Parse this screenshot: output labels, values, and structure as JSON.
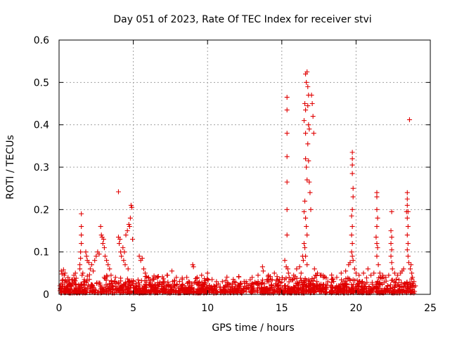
{
  "chart_data": {
    "type": "scatter",
    "title": "Day 051 of 2023, Rate Of TEC Index for receiver stvi",
    "xlabel": "GPS time / hours",
    "ylabel": "ROTI / TECUs",
    "xlim": [
      0,
      25
    ],
    "ylim": [
      0,
      0.6
    ],
    "xticks": [
      0,
      5,
      10,
      15,
      20,
      25
    ],
    "yticks": [
      0,
      0.1,
      0.2,
      0.3,
      0.4,
      0.5,
      0.6
    ],
    "xtick_labels": [
      "0",
      "5",
      "10",
      "15",
      "20",
      "25"
    ],
    "ytick_labels": [
      "0",
      "0.1",
      "0.2",
      "0.3",
      "0.4",
      "0.5",
      "0.6"
    ],
    "grid": true,
    "marker": "plus",
    "color": "#e00000",
    "series": [
      {
        "name": "ROTI",
        "points": [
          [
            0.1,
            0.012
          ],
          [
            0.15,
            0.055
          ],
          [
            0.2,
            0.048
          ],
          [
            0.25,
            0.035
          ],
          [
            0.3,
            0.058
          ],
          [
            0.35,
            0.045
          ],
          [
            0.4,
            0.05
          ],
          [
            0.5,
            0.03
          ],
          [
            0.6,
            0.04
          ],
          [
            0.7,
            0.025
          ],
          [
            0.8,
            0.02
          ],
          [
            0.9,
            0.035
          ],
          [
            1.0,
            0.045
          ],
          [
            1.1,
            0.05
          ],
          [
            1.15,
            0.038
          ],
          [
            1.5,
            0.19
          ],
          [
            1.5,
            0.16
          ],
          [
            1.5,
            0.14
          ],
          [
            1.5,
            0.12
          ],
          [
            1.45,
            0.1
          ],
          [
            1.45,
            0.085
          ],
          [
            1.4,
            0.07
          ],
          [
            1.4,
            0.06
          ],
          [
            1.55,
            0.045
          ],
          [
            1.6,
            0.05
          ],
          [
            1.7,
            0.035
          ],
          [
            1.8,
            0.1
          ],
          [
            1.85,
            0.09
          ],
          [
            1.9,
            0.08
          ],
          [
            2.0,
            0.075
          ],
          [
            2.1,
            0.06
          ],
          [
            2.2,
            0.07
          ],
          [
            2.3,
            0.055
          ],
          [
            2.4,
            0.08
          ],
          [
            2.5,
            0.09
          ],
          [
            2.6,
            0.1
          ],
          [
            2.7,
            0.095
          ],
          [
            2.8,
            0.16
          ],
          [
            2.85,
            0.14
          ],
          [
            2.9,
            0.135
          ],
          [
            2.95,
            0.12
          ],
          [
            3.0,
            0.13
          ],
          [
            3.05,
            0.11
          ],
          [
            3.1,
            0.09
          ],
          [
            3.2,
            0.08
          ],
          [
            3.3,
            0.07
          ],
          [
            3.4,
            0.06
          ],
          [
            3.5,
            0.045
          ],
          [
            3.8,
            0.04
          ],
          [
            4.0,
            0.242
          ],
          [
            4.0,
            0.135
          ],
          [
            4.05,
            0.12
          ],
          [
            4.1,
            0.13
          ],
          [
            4.15,
            0.1
          ],
          [
            4.2,
            0.09
          ],
          [
            4.3,
            0.11
          ],
          [
            4.35,
            0.08
          ],
          [
            4.4,
            0.1
          ],
          [
            4.45,
            0.07
          ],
          [
            4.5,
            0.14
          ],
          [
            4.6,
            0.15
          ],
          [
            4.65,
            0.06
          ],
          [
            4.7,
            0.165
          ],
          [
            4.75,
            0.16
          ],
          [
            4.8,
            0.18
          ],
          [
            4.85,
            0.21
          ],
          [
            4.9,
            0.205
          ],
          [
            4.95,
            0.13
          ],
          [
            5.4,
            0.09
          ],
          [
            5.5,
            0.08
          ],
          [
            5.6,
            0.085
          ],
          [
            5.7,
            0.06
          ],
          [
            5.8,
            0.05
          ],
          [
            6.0,
            0.04
          ],
          [
            6.3,
            0.035
          ],
          [
            6.6,
            0.04
          ],
          [
            7.0,
            0.03
          ],
          [
            7.3,
            0.045
          ],
          [
            7.6,
            0.055
          ],
          [
            7.9,
            0.04
          ],
          [
            8.3,
            0.035
          ],
          [
            8.6,
            0.04
          ],
          [
            9.0,
            0.07
          ],
          [
            9.05,
            0.065
          ],
          [
            9.3,
            0.04
          ],
          [
            9.6,
            0.045
          ],
          [
            10.0,
            0.05
          ],
          [
            10.3,
            0.035
          ],
          [
            10.6,
            0.03
          ],
          [
            11.0,
            0.03
          ],
          [
            11.4,
            0.025
          ],
          [
            11.8,
            0.03
          ],
          [
            12.2,
            0.025
          ],
          [
            12.6,
            0.03
          ],
          [
            13.0,
            0.04
          ],
          [
            13.4,
            0.045
          ],
          [
            13.7,
            0.065
          ],
          [
            13.75,
            0.055
          ],
          [
            14.1,
            0.045
          ],
          [
            14.5,
            0.05
          ],
          [
            14.8,
            0.03
          ],
          [
            15.2,
            0.08
          ],
          [
            15.3,
            0.065
          ],
          [
            15.35,
            0.465
          ],
          [
            15.35,
            0.435
          ],
          [
            15.35,
            0.38
          ],
          [
            15.35,
            0.325
          ],
          [
            15.35,
            0.265
          ],
          [
            15.35,
            0.2
          ],
          [
            15.35,
            0.14
          ],
          [
            15.4,
            0.06
          ],
          [
            15.45,
            0.05
          ],
          [
            15.5,
            0.04
          ],
          [
            15.6,
            0.035
          ],
          [
            15.8,
            0.045
          ],
          [
            16.0,
            0.06
          ],
          [
            16.2,
            0.065
          ],
          [
            16.3,
            0.05
          ],
          [
            16.4,
            0.09
          ],
          [
            16.45,
            0.08
          ],
          [
            16.5,
            0.41
          ],
          [
            16.55,
            0.45
          ],
          [
            16.6,
            0.38
          ],
          [
            16.6,
            0.32
          ],
          [
            16.65,
            0.3
          ],
          [
            16.7,
            0.27
          ],
          [
            16.55,
            0.22
          ],
          [
            16.5,
            0.195
          ],
          [
            16.6,
            0.18
          ],
          [
            16.65,
            0.16
          ],
          [
            16.7,
            0.14
          ],
          [
            16.5,
            0.12
          ],
          [
            16.55,
            0.11
          ],
          [
            16.6,
            0.09
          ],
          [
            16.7,
            0.07
          ],
          [
            16.6,
            0.52
          ],
          [
            16.65,
            0.5
          ],
          [
            16.7,
            0.525
          ],
          [
            16.75,
            0.49
          ],
          [
            16.8,
            0.47
          ],
          [
            16.6,
            0.435
          ],
          [
            16.75,
            0.445
          ],
          [
            16.8,
            0.4
          ],
          [
            16.85,
            0.39
          ],
          [
            16.75,
            0.355
          ],
          [
            16.8,
            0.315
          ],
          [
            16.85,
            0.265
          ],
          [
            16.9,
            0.24
          ],
          [
            16.95,
            0.2
          ],
          [
            17.0,
            0.47
          ],
          [
            17.05,
            0.45
          ],
          [
            17.1,
            0.42
          ],
          [
            17.15,
            0.38
          ],
          [
            17.2,
            0.06
          ],
          [
            17.4,
            0.05
          ],
          [
            17.6,
            0.045
          ],
          [
            17.8,
            0.04
          ],
          [
            18.1,
            0.03
          ],
          [
            18.4,
            0.035
          ],
          [
            18.7,
            0.04
          ],
          [
            19.0,
            0.05
          ],
          [
            19.3,
            0.055
          ],
          [
            19.5,
            0.07
          ],
          [
            19.6,
            0.075
          ],
          [
            19.75,
            0.335
          ],
          [
            19.75,
            0.32
          ],
          [
            19.75,
            0.305
          ],
          [
            19.75,
            0.285
          ],
          [
            19.8,
            0.25
          ],
          [
            19.8,
            0.23
          ],
          [
            19.75,
            0.2
          ],
          [
            19.7,
            0.185
          ],
          [
            19.75,
            0.16
          ],
          [
            19.7,
            0.14
          ],
          [
            19.75,
            0.12
          ],
          [
            19.7,
            0.1
          ],
          [
            19.75,
            0.09
          ],
          [
            19.8,
            0.08
          ],
          [
            19.9,
            0.06
          ],
          [
            20.0,
            0.05
          ],
          [
            20.2,
            0.045
          ],
          [
            20.5,
            0.05
          ],
          [
            20.8,
            0.06
          ],
          [
            21.0,
            0.045
          ],
          [
            21.2,
            0.05
          ],
          [
            21.4,
            0.24
          ],
          [
            21.4,
            0.23
          ],
          [
            21.4,
            0.2
          ],
          [
            21.45,
            0.18
          ],
          [
            21.4,
            0.16
          ],
          [
            21.35,
            0.135
          ],
          [
            21.4,
            0.12
          ],
          [
            21.45,
            0.11
          ],
          [
            21.4,
            0.09
          ],
          [
            21.5,
            0.07
          ],
          [
            21.6,
            0.05
          ],
          [
            21.8,
            0.045
          ],
          [
            22.0,
            0.04
          ],
          [
            22.2,
            0.045
          ],
          [
            22.4,
            0.195
          ],
          [
            22.35,
            0.15
          ],
          [
            22.4,
            0.135
          ],
          [
            22.35,
            0.12
          ],
          [
            22.4,
            0.105
          ],
          [
            22.35,
            0.09
          ],
          [
            22.4,
            0.075
          ],
          [
            22.45,
            0.06
          ],
          [
            22.6,
            0.05
          ],
          [
            22.8,
            0.045
          ],
          [
            23.0,
            0.05
          ],
          [
            23.1,
            0.055
          ],
          [
            23.2,
            0.06
          ],
          [
            23.45,
            0.24
          ],
          [
            23.45,
            0.225
          ],
          [
            23.45,
            0.21
          ],
          [
            23.4,
            0.195
          ],
          [
            23.5,
            0.195
          ],
          [
            23.45,
            0.18
          ],
          [
            23.5,
            0.16
          ],
          [
            23.45,
            0.14
          ],
          [
            23.5,
            0.12
          ],
          [
            23.45,
            0.105
          ],
          [
            23.5,
            0.09
          ],
          [
            23.55,
            0.075
          ],
          [
            23.6,
            0.412
          ],
          [
            23.65,
            0.06
          ],
          [
            23.7,
            0.07
          ],
          [
            23.75,
            0.05
          ],
          [
            23.8,
            0.04
          ],
          [
            23.9,
            0.03
          ],
          [
            24.0,
            0.02
          ]
        ]
      }
    ]
  }
}
